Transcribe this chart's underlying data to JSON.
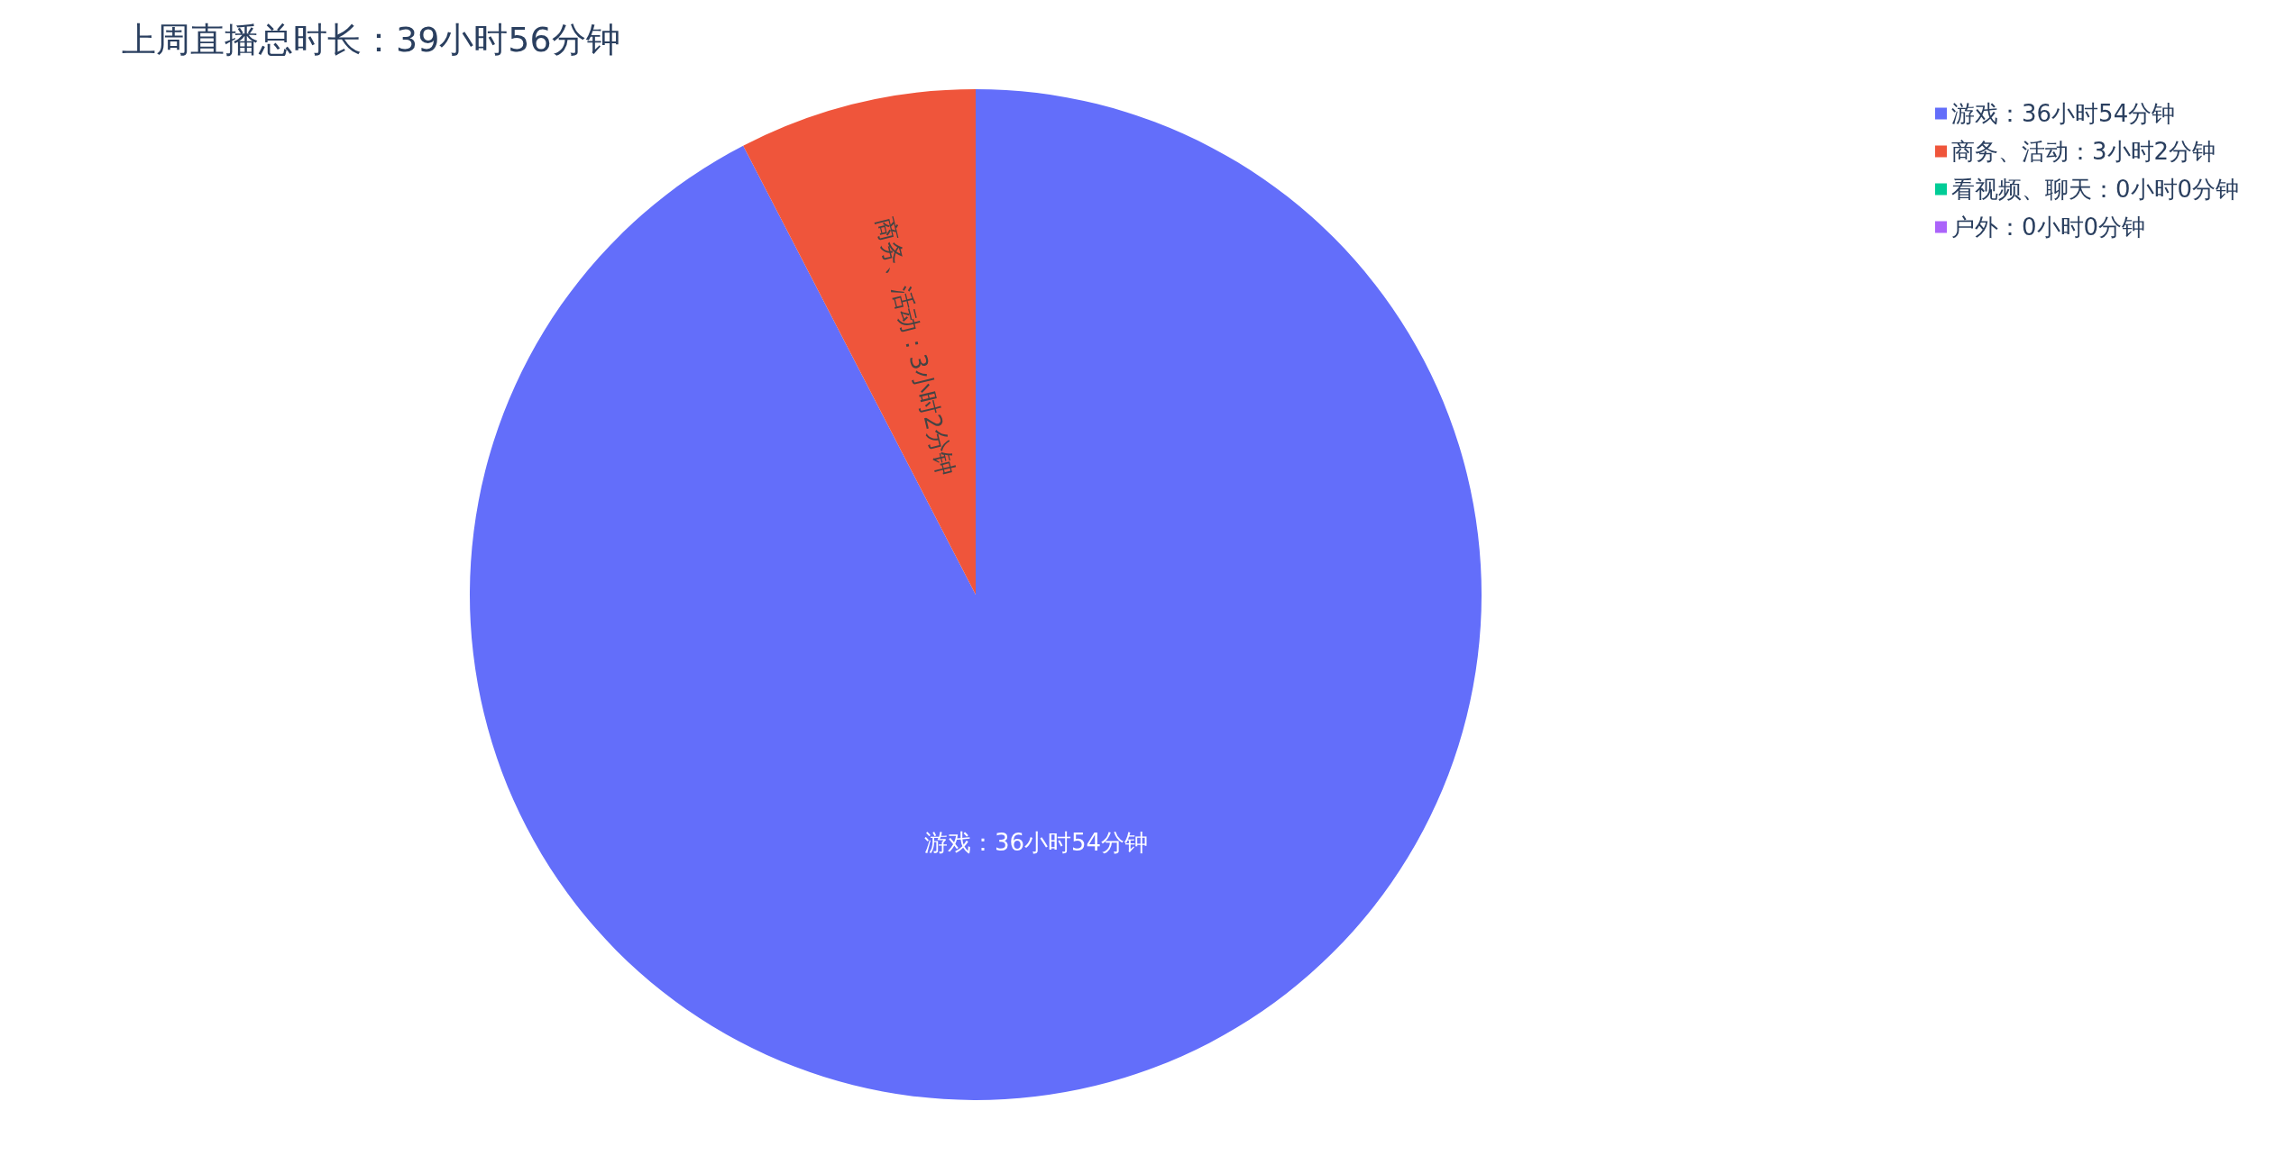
{
  "chart_data": {
    "type": "pie",
    "title": "上周直播总时长：39小时56分钟",
    "categories": [
      "游戏：36小时54分钟",
      "商务、活动：3小时2分钟",
      "看视频、聊天：0小时0分钟",
      "户外：0小时0分钟"
    ],
    "values": [
      92.4,
      7.6,
      0,
      0
    ],
    "colors": [
      "#636efa",
      "#ef553b",
      "#00cc96",
      "#ab63fa"
    ],
    "value_labels": [
      "游戏：36小时54分钟",
      "商务、活动：3小时2分钟",
      null,
      null
    ],
    "legend": "top right"
  }
}
